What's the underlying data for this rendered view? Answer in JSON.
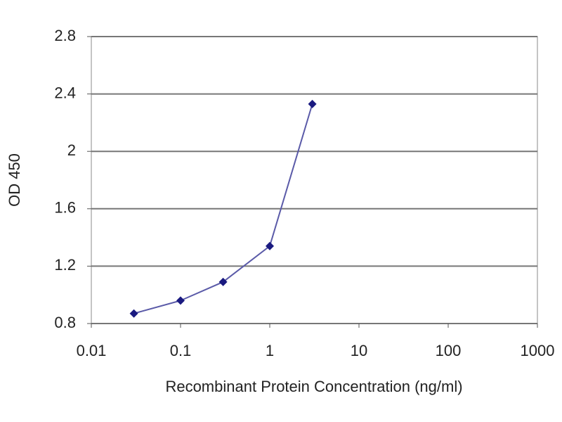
{
  "chart_data": {
    "type": "line",
    "x_label": "Recombinant Protein Concentration (ng/ml)",
    "y_label": "OD 450",
    "x": [
      0.03,
      0.1,
      0.3,
      1,
      3
    ],
    "values": [
      0.87,
      0.96,
      1.09,
      1.34,
      2.33
    ],
    "color": "#1a1a80",
    "line_color": "#5a5aa8",
    "xscale": "log",
    "xlim": [
      0.01,
      1000
    ],
    "xticks": [
      0.01,
      0.1,
      1,
      10,
      100,
      1000
    ],
    "ylim": [
      0.8,
      2.8
    ],
    "yticks": [
      0.8,
      1.2,
      1.6,
      2,
      2.4,
      2.8
    ],
    "grid": true
  }
}
